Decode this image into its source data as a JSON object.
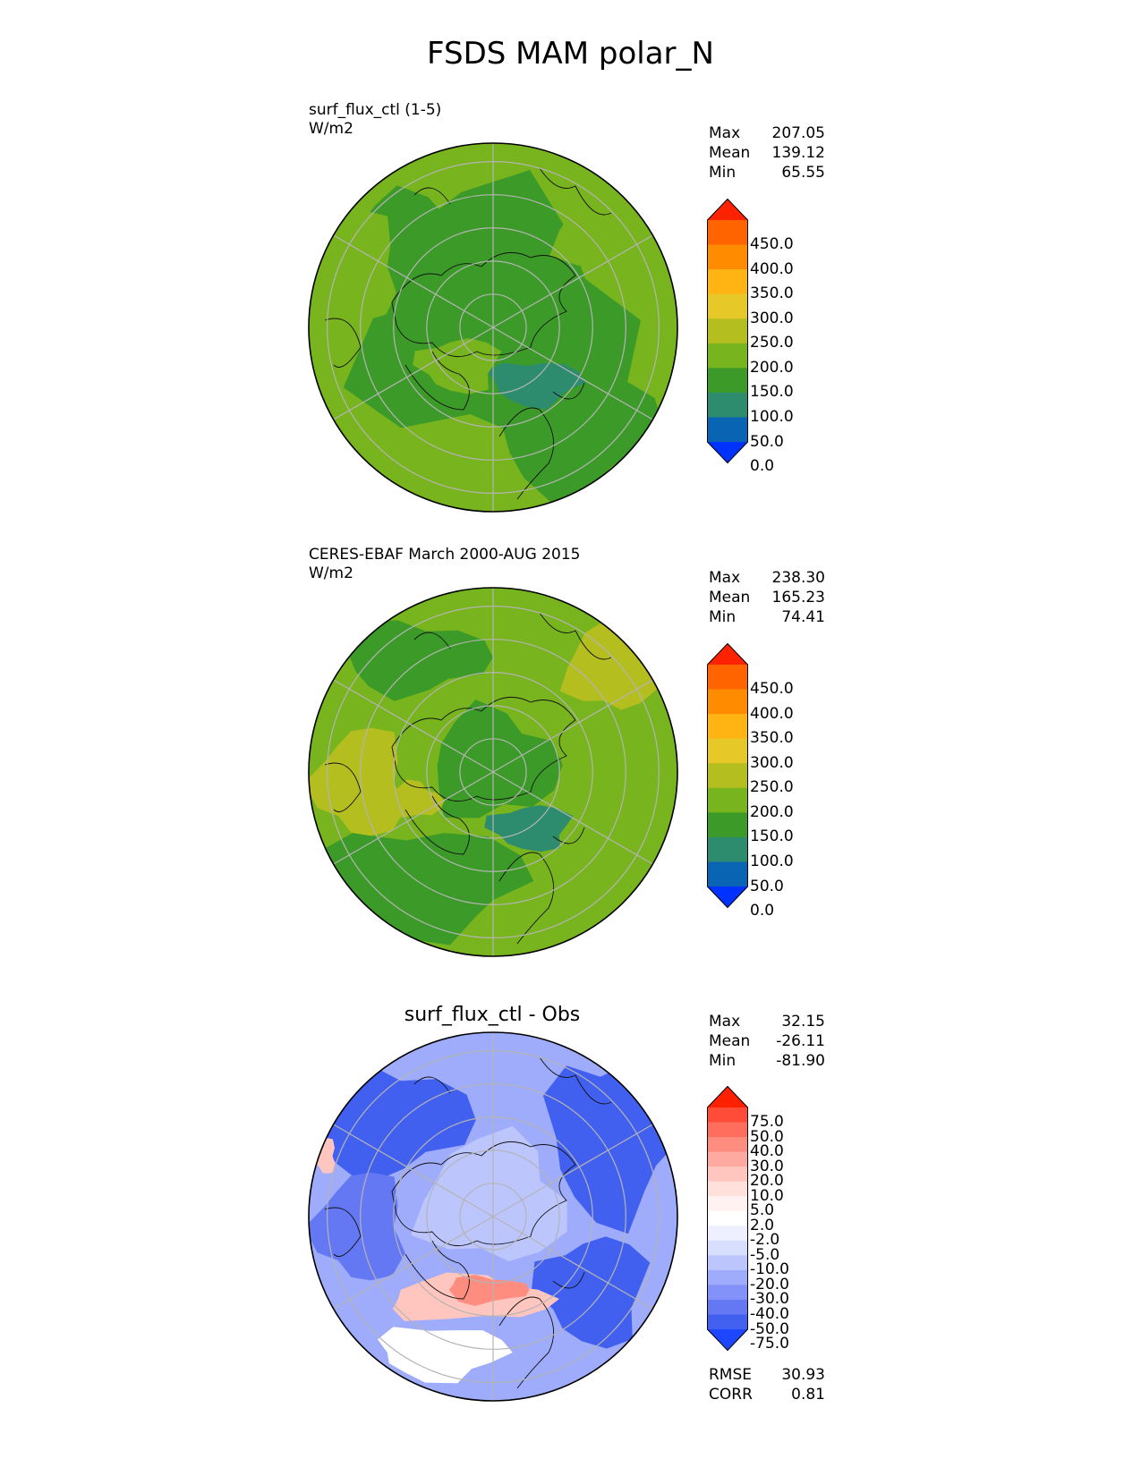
{
  "figure": {
    "title": "FSDS MAM polar_N"
  },
  "panels": [
    {
      "id": "test",
      "label_line1": "surf_flux_ctl (1-5)",
      "label_line2": "W/m2",
      "stats": {
        "max_label": "Max",
        "max": "207.05",
        "mean_label": "Mean",
        "mean": "139.12",
        "min_label": "Min",
        "min": "65.55"
      }
    },
    {
      "id": "ref",
      "label_line1": "CERES-EBAF March 2000-AUG 2015",
      "label_line2": "W/m2",
      "stats": {
        "max_label": "Max",
        "max": "238.30",
        "mean_label": "Mean",
        "mean": "165.23",
        "min_label": "Min",
        "min": "74.41"
      }
    },
    {
      "id": "diff",
      "title": "surf_flux_ctl - Obs",
      "stats": {
        "max_label": "Max",
        "max": "32.15",
        "mean_label": "Mean",
        "mean": "-26.11",
        "min_label": "Min",
        "min": "-81.90"
      },
      "metrics": {
        "rmse_label": "RMSE",
        "rmse": "30.93",
        "corr_label": "CORR",
        "corr": "0.81"
      }
    }
  ],
  "colorbars": {
    "main": {
      "labels": [
        "450.0",
        "400.0",
        "350.0",
        "300.0",
        "250.0",
        "200.0",
        "150.0",
        "100.0",
        "50.0",
        "0.0"
      ],
      "colors": [
        "#ff2200",
        "#ff6400",
        "#ff8c00",
        "#ffb414",
        "#e6c828",
        "#b4be1e",
        "#78b41e",
        "#3c9b28",
        "#2d8c6e",
        "#0a64b4",
        "#0032ff"
      ]
    },
    "diff": {
      "labels": [
        "75.0",
        "50.0",
        "40.0",
        "30.0",
        "20.0",
        "10.0",
        "5.0",
        "2.0",
        "-2.0",
        "-5.0",
        "-10.0",
        "-20.0",
        "-30.0",
        "-40.0",
        "-50.0",
        "-75.0"
      ],
      "colors": [
        "#ff2000",
        "#ff4c38",
        "#ff6e5c",
        "#ff8d7f",
        "#ffaaa0",
        "#ffc6bf",
        "#ffe0db",
        "#fff2f0",
        "#ffffff",
        "#eef0ff",
        "#d8defe",
        "#bcc6fd",
        "#9eacfb",
        "#8292f8",
        "#6478f4",
        "#4260ef",
        "#1e46ff"
      ]
    }
  }
}
